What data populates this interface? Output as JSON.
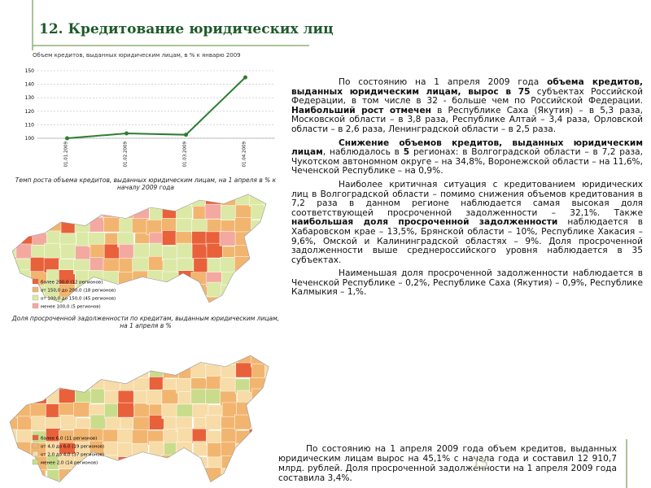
{
  "title": "12. Кредитование юридических лиц",
  "chart_data": {
    "type": "line",
    "title": "Объем кредитов, выданных юридическим лицам, в % к январю 2009",
    "categories": [
      "01.01.2009",
      "01.02.2009",
      "01.03.2009",
      "01.04.2009"
    ],
    "series": [
      {
        "name": "Объем кредитов",
        "color": "#2e7d32",
        "values": [
          100,
          103.6,
          102.6,
          145.1
        ]
      }
    ],
    "ylim": [
      100,
      150
    ],
    "yticks": [
      100,
      110,
      120,
      130,
      140,
      150
    ],
    "grid": true
  },
  "captions": [
    "Темп роста объема кредитов, выданных юридическим лицам, на 1 апреля в % к началу 2009 года",
    "Доля просроченной задолженности по кредитам, выданным юридическим лицам, на 1 апреля в %"
  ],
  "maps": [
    {
      "legend": [
        {
          "label": "более 200,0 (12 регионов)",
          "color": "#e8613a"
        },
        {
          "label": "от 150,0 до 200,0 (18 регионов)",
          "color": "#f2b56f"
        },
        {
          "label": "от 100,0 до 150,0 (45 регионов)",
          "color": "#dce9a6"
        },
        {
          "label": "менее 100,0 (5 регионов)",
          "color": "#f4a9a0"
        }
      ]
    },
    {
      "legend": [
        {
          "label": "более 6,0 (11 регионов)",
          "color": "#e8613a"
        },
        {
          "label": "от 4,0 до 6,0 (19 регионов)",
          "color": "#f2b56f"
        },
        {
          "label": "от 2,0 до 4,0 (37 регионов)",
          "color": "#f7dca8"
        },
        {
          "label": "менее 2,0 (14 регионов)",
          "color": "#c9dc8c"
        }
      ]
    }
  ],
  "paragraphs": [
    [
      {
        "text": "По состоянию на 1 апреля 2009 года ",
        "bold": false
      },
      {
        "text": "объема кредитов, выданных юридическим лицам, вырос в 75",
        "bold": true
      },
      {
        "text": " субъектах Российской Федерации, в том числе в 32  - больше чем по Российской Федерации. ",
        "bold": false
      },
      {
        "text": "Наибольший рост отмечен",
        "bold": true
      },
      {
        "text": " в Республике Саха (Якутия) – в 5,3 раза, Московской области – в 3,8 раза, Республике Алтай – 3,4 раза, Орловской области – в 2,6 раза, Ленинградской области – в 2,5 раза.",
        "bold": false
      }
    ],
    [
      {
        "text": "Снижение объемов кредитов, выданных юридическим лицам",
        "bold": true
      },
      {
        "text": ", наблюдалось в ",
        "bold": false
      },
      {
        "text": "5",
        "bold": true
      },
      {
        "text": " регионах: в Волгоградской области – в 7,2 раза, Чукотском автономном округе – на 34,8%, Воронежской области – на 11,6%, Чеченской Республике – на 0,9%.",
        "bold": false
      }
    ],
    [
      {
        "text": "Наиболее критичная ситуация с кредитованием юридических лиц в Волгоградской области – помимо снижения объемов кредитования в 7,2 раза в данном регионе наблюдается самая высокая доля соответствующей просроченной задолженности – 32,1%. Также ",
        "bold": false
      },
      {
        "text": "наибольшая доля просроченной задолженности",
        "bold": true
      },
      {
        "text": " наблюдается в Хабаровском крае – 13,5%, Брянской области – 10%, Республике Хакасия – 9,6%, Омской и Калининградской областях – 9%. Доля просроченной задолженности выше среднероссийского уровня наблюдается в 35 субъектах.",
        "bold": false
      }
    ],
    [
      {
        "text": "Наименьшая доля просроченной задолженности наблюдается в Чеченской Республике – 0,2%, Республике Саха (Якутия) – 0,9%, Республике Калмыкия – 1,%.",
        "bold": false
      }
    ]
  ],
  "summary": "По состоянию на 1 апреля 2009 года объем кредитов, выданных юридическим лицам вырос на 45,1% с начала года и составил 12 910,7 млрд. рублей. Доля просроченной задолженности на 1 апреля 2009 года составила 3,4%.",
  "page_number": "15"
}
